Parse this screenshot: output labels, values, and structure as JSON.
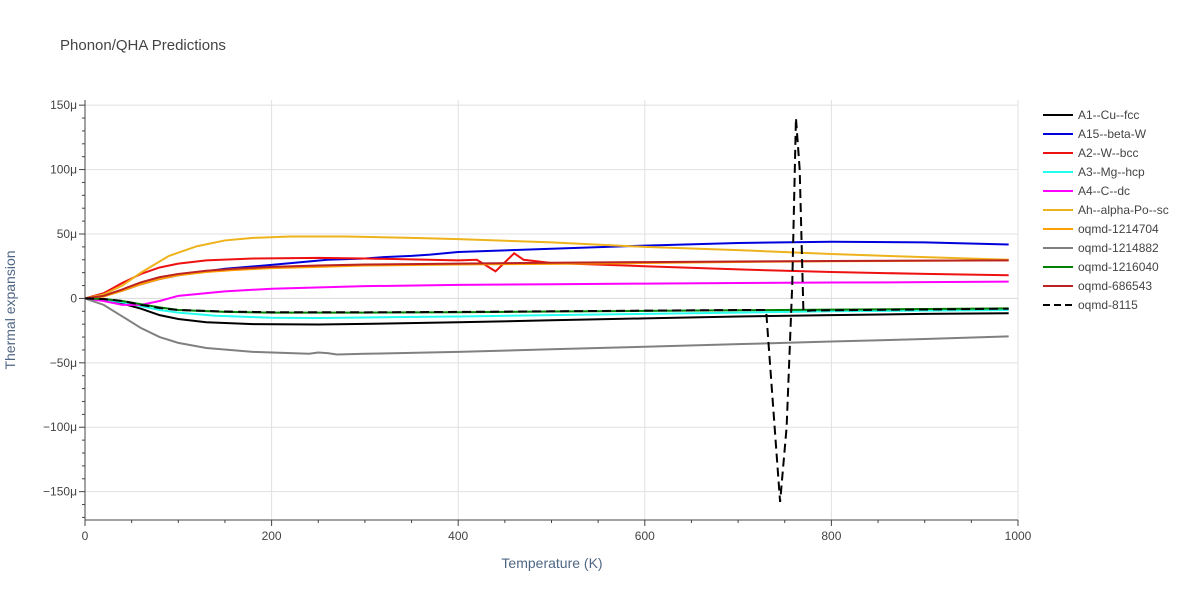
{
  "chart_data": {
    "type": "line",
    "title": "Phonon/QHA Predictions",
    "xlabel": "Temperature (K)",
    "ylabel": "Thermal expansion",
    "xlim": [
      0,
      1000
    ],
    "ylim": [
      -172,
      154
    ],
    "y_unit_suffix": "μ",
    "x_ticks": [
      0,
      200,
      400,
      600,
      800,
      1000
    ],
    "y_ticks": [
      -150,
      -100,
      -50,
      0,
      50,
      100,
      150
    ],
    "x_tick_labels": [
      "0",
      "200",
      "400",
      "600",
      "800",
      "1000"
    ],
    "y_tick_labels": [
      "−150μ",
      "−100μ",
      "−50μ",
      "0",
      "50μ",
      "100μ",
      "150μ"
    ],
    "grid": true,
    "legend_position": "right",
    "series": [
      {
        "name": "A1--Cu--fcc",
        "color": "#000000",
        "dash": "solid",
        "points": [
          [
            0,
            0
          ],
          [
            20,
            -1
          ],
          [
            40,
            -4
          ],
          [
            60,
            -8
          ],
          [
            80,
            -13
          ],
          [
            100,
            -16
          ],
          [
            130,
            -18.5
          ],
          [
            180,
            -20
          ],
          [
            250,
            -20.3
          ],
          [
            300,
            -19.8
          ],
          [
            400,
            -18.5
          ],
          [
            500,
            -17
          ],
          [
            600,
            -15.5
          ],
          [
            700,
            -14
          ],
          [
            800,
            -13
          ],
          [
            900,
            -12
          ],
          [
            990,
            -11.5
          ]
        ]
      },
      {
        "name": "A15--beta-W",
        "color": "#0000dd",
        "dash": "solid",
        "points": [
          [
            0,
            0
          ],
          [
            20,
            2
          ],
          [
            40,
            6
          ],
          [
            60,
            11
          ],
          [
            80,
            15
          ],
          [
            100,
            18
          ],
          [
            150,
            23
          ],
          [
            200,
            26
          ],
          [
            260,
            30
          ],
          [
            280,
            30.5
          ],
          [
            300,
            31
          ],
          [
            320,
            32
          ],
          [
            350,
            33
          ],
          [
            370,
            34
          ],
          [
            400,
            36
          ],
          [
            500,
            38.5
          ],
          [
            600,
            41
          ],
          [
            700,
            43
          ],
          [
            800,
            44
          ],
          [
            900,
            43.5
          ],
          [
            990,
            41.8
          ]
        ]
      },
      {
        "name": "A2--W--bcc",
        "color": "#ee1111",
        "dash": "solid",
        "points": [
          [
            0,
            0
          ],
          [
            20,
            4
          ],
          [
            40,
            12
          ],
          [
            60,
            19
          ],
          [
            80,
            24
          ],
          [
            100,
            27
          ],
          [
            130,
            29.5
          ],
          [
            180,
            31
          ],
          [
            250,
            31.5
          ],
          [
            300,
            31
          ],
          [
            400,
            29.5
          ],
          [
            420,
            30
          ],
          [
            440,
            21
          ],
          [
            460,
            35
          ],
          [
            470,
            30
          ],
          [
            500,
            27.5
          ],
          [
            600,
            25
          ],
          [
            700,
            22.5
          ],
          [
            800,
            20.5
          ],
          [
            900,
            19
          ],
          [
            990,
            18
          ]
        ]
      },
      {
        "name": "A3--Mg--hcp",
        "color": "#22ffee",
        "dash": "solid",
        "points": [
          [
            0,
            0
          ],
          [
            20,
            -1
          ],
          [
            40,
            -3
          ],
          [
            60,
            -6
          ],
          [
            80,
            -9
          ],
          [
            100,
            -11
          ],
          [
            140,
            -13.5
          ],
          [
            200,
            -15
          ],
          [
            250,
            -15.2
          ],
          [
            300,
            -14.8
          ],
          [
            400,
            -14
          ],
          [
            500,
            -13
          ],
          [
            600,
            -12
          ],
          [
            700,
            -11
          ],
          [
            800,
            -10
          ],
          [
            900,
            -9.5
          ],
          [
            990,
            -9
          ]
        ]
      },
      {
        "name": "A4--C--dc",
        "color": "#ff00ff",
        "dash": "solid",
        "points": [
          [
            0,
            0
          ],
          [
            20,
            -2
          ],
          [
            40,
            -5
          ],
          [
            60,
            -5
          ],
          [
            80,
            -2
          ],
          [
            100,
            2
          ],
          [
            150,
            5.5
          ],
          [
            200,
            7.5
          ],
          [
            300,
            9.5
          ],
          [
            400,
            10.5
          ],
          [
            500,
            11
          ],
          [
            600,
            11.5
          ],
          [
            700,
            12
          ],
          [
            800,
            12.3
          ],
          [
            900,
            12.6
          ],
          [
            990,
            13
          ]
        ]
      },
      {
        "name": "Ah--alpha-Po--sc",
        "color": "#eeb31c",
        "dash": "solid",
        "points": [
          [
            0,
            0
          ],
          [
            20,
            3
          ],
          [
            40,
            10
          ],
          [
            60,
            20
          ],
          [
            90,
            33
          ],
          [
            120,
            40.5
          ],
          [
            150,
            45
          ],
          [
            180,
            47
          ],
          [
            220,
            48
          ],
          [
            280,
            48
          ],
          [
            350,
            47
          ],
          [
            400,
            46
          ],
          [
            500,
            43.5
          ],
          [
            600,
            40
          ],
          [
            700,
            37.5
          ],
          [
            800,
            34.5
          ],
          [
            900,
            32
          ],
          [
            990,
            30
          ]
        ]
      },
      {
        "name": "oqmd-1214704",
        "color": "#ffa000",
        "dash": "solid",
        "points": [
          [
            0,
            0
          ],
          [
            20,
            1.5
          ],
          [
            40,
            6
          ],
          [
            60,
            11
          ],
          [
            80,
            15
          ],
          [
            100,
            18
          ],
          [
            130,
            20.5
          ],
          [
            160,
            22
          ],
          [
            200,
            23.5
          ],
          [
            250,
            24.5
          ],
          [
            300,
            25.5
          ],
          [
            400,
            26.3
          ],
          [
            500,
            26.8
          ],
          [
            600,
            27.5
          ],
          [
            700,
            28.3
          ],
          [
            800,
            28.8
          ],
          [
            900,
            29.2
          ],
          [
            990,
            29.5
          ]
        ]
      },
      {
        "name": "oqmd-1214882",
        "color": "#808080",
        "dash": "solid",
        "points": [
          [
            0,
            0
          ],
          [
            20,
            -5
          ],
          [
            40,
            -14
          ],
          [
            60,
            -23
          ],
          [
            80,
            -30
          ],
          [
            100,
            -34.5
          ],
          [
            130,
            -38.5
          ],
          [
            180,
            -41.5
          ],
          [
            240,
            -43
          ],
          [
            250,
            -42
          ],
          [
            260,
            -42.5
          ],
          [
            270,
            -43.5
          ],
          [
            300,
            -43
          ],
          [
            400,
            -41.5
          ],
          [
            500,
            -39.5
          ],
          [
            600,
            -37.5
          ],
          [
            700,
            -35.5
          ],
          [
            800,
            -33.5
          ],
          [
            900,
            -31.5
          ],
          [
            990,
            -29.5
          ]
        ]
      },
      {
        "name": "oqmd-1216040",
        "color": "#008000",
        "dash": "solid",
        "points": [
          [
            0,
            0
          ],
          [
            20,
            -0.5
          ],
          [
            40,
            -2
          ],
          [
            60,
            -4.5
          ],
          [
            80,
            -7
          ],
          [
            100,
            -9
          ],
          [
            150,
            -10.5
          ],
          [
            200,
            -11
          ],
          [
            300,
            -11
          ],
          [
            400,
            -10.7
          ],
          [
            500,
            -10.2
          ],
          [
            600,
            -9.7
          ],
          [
            700,
            -9.2
          ],
          [
            800,
            -8.7
          ],
          [
            900,
            -8.2
          ],
          [
            990,
            -7.7
          ]
        ]
      },
      {
        "name": "oqmd-686543",
        "color": "#bb2222",
        "dash": "solid",
        "points": [
          [
            0,
            0
          ],
          [
            20,
            2
          ],
          [
            40,
            7
          ],
          [
            60,
            12.5
          ],
          [
            80,
            16.5
          ],
          [
            100,
            19
          ],
          [
            130,
            21.5
          ],
          [
            160,
            23
          ],
          [
            200,
            24.5
          ],
          [
            250,
            25.5
          ],
          [
            300,
            26.3
          ],
          [
            400,
            27
          ],
          [
            500,
            27.7
          ],
          [
            600,
            28.2
          ],
          [
            700,
            28.6
          ],
          [
            800,
            29
          ],
          [
            900,
            29.3
          ],
          [
            990,
            29.5
          ]
        ]
      },
      {
        "name": "oqmd-8115",
        "color": "#000000",
        "dash": "dash",
        "points": [
          [
            0,
            0
          ],
          [
            20,
            -0.5
          ],
          [
            40,
            -2
          ],
          [
            60,
            -5
          ],
          [
            80,
            -7.5
          ],
          [
            100,
            -9
          ],
          [
            150,
            -10.2
          ],
          [
            200,
            -10.7
          ],
          [
            300,
            -10.8
          ],
          [
            400,
            -10.5
          ],
          [
            500,
            -10
          ],
          [
            600,
            -9.5
          ],
          [
            700,
            -9
          ],
          [
            730,
            -9
          ],
          [
            745,
            -158
          ],
          [
            752,
            -100
          ],
          [
            758,
            10
          ],
          [
            762,
            140
          ],
          [
            766,
            100
          ],
          [
            770,
            -10
          ],
          [
            780,
            -9.3
          ],
          [
            900,
            -8.6
          ],
          [
            990,
            -8
          ]
        ]
      }
    ]
  }
}
